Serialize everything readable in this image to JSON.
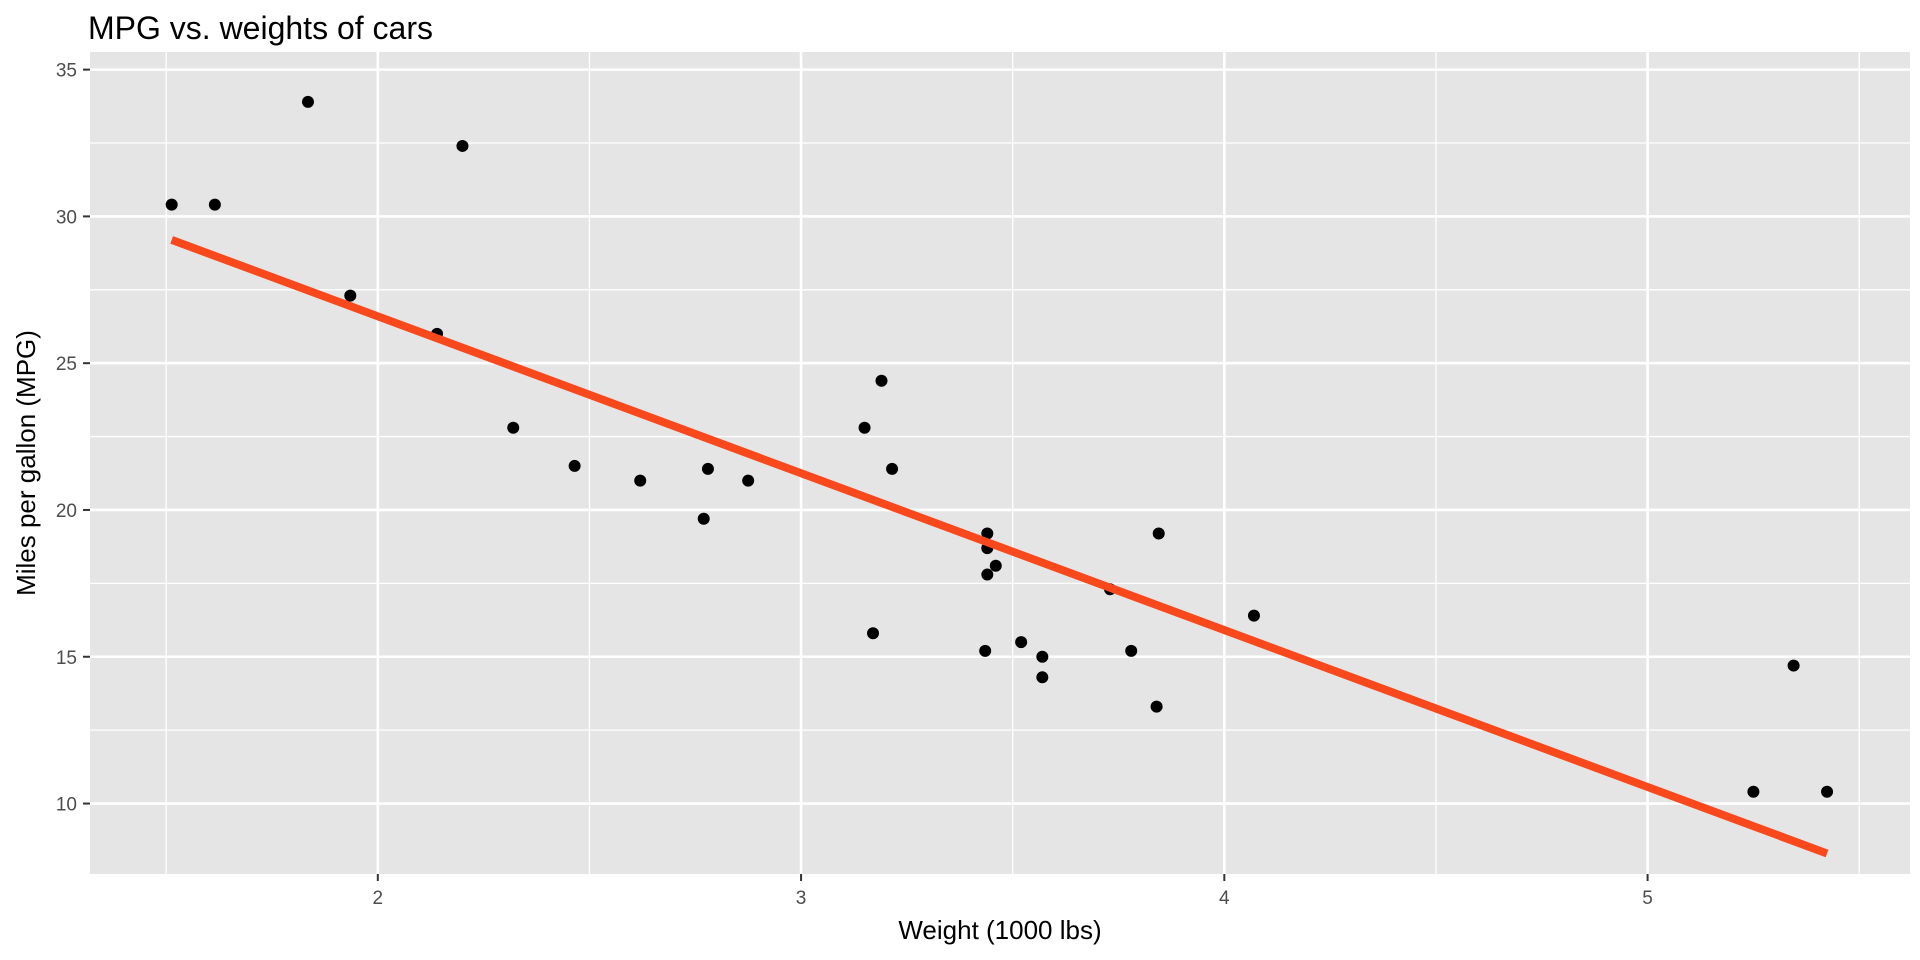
{
  "chart_data": {
    "type": "scatter",
    "title": "MPG vs. weights of cars",
    "xlabel": "Weight (1000 lbs)",
    "ylabel": "Miles per gallon (MPG)",
    "xlim": [
      1.32,
      5.62
    ],
    "ylim": [
      7.6,
      35.6
    ],
    "x_ticks": [
      2,
      3,
      4,
      5
    ],
    "x_tick_labels": [
      "2",
      "3",
      "4",
      "5"
    ],
    "y_ticks": [
      10,
      15,
      20,
      25,
      30,
      35
    ],
    "y_tick_labels": [
      "10",
      "15",
      "20",
      "25",
      "30",
      "35"
    ],
    "grid": true,
    "background_color": "#e5e5e5",
    "grid_color": "#ffffff",
    "point_color": "#000000",
    "series": [
      {
        "points": [
          {
            "x": 2.62,
            "y": 21.0
          },
          {
            "x": 2.875,
            "y": 21.0
          },
          {
            "x": 2.32,
            "y": 22.8
          },
          {
            "x": 3.215,
            "y": 21.4
          },
          {
            "x": 3.44,
            "y": 18.7
          },
          {
            "x": 3.46,
            "y": 18.1
          },
          {
            "x": 3.57,
            "y": 14.3
          },
          {
            "x": 3.19,
            "y": 24.4
          },
          {
            "x": 3.15,
            "y": 22.8
          },
          {
            "x": 3.44,
            "y": 19.2
          },
          {
            "x": 3.44,
            "y": 17.8
          },
          {
            "x": 4.07,
            "y": 16.4
          },
          {
            "x": 3.73,
            "y": 17.3
          },
          {
            "x": 3.78,
            "y": 15.2
          },
          {
            "x": 5.25,
            "y": 10.4
          },
          {
            "x": 5.424,
            "y": 10.4
          },
          {
            "x": 5.345,
            "y": 14.7
          },
          {
            "x": 2.2,
            "y": 32.4
          },
          {
            "x": 1.615,
            "y": 30.4
          },
          {
            "x": 1.835,
            "y": 33.9
          },
          {
            "x": 2.465,
            "y": 21.5
          },
          {
            "x": 3.52,
            "y": 15.5
          },
          {
            "x": 3.435,
            "y": 15.2
          },
          {
            "x": 3.84,
            "y": 13.3
          },
          {
            "x": 3.845,
            "y": 19.2
          },
          {
            "x": 1.935,
            "y": 27.3
          },
          {
            "x": 2.14,
            "y": 26.0
          },
          {
            "x": 1.513,
            "y": 30.4
          },
          {
            "x": 3.17,
            "y": 15.8
          },
          {
            "x": 2.77,
            "y": 19.7
          },
          {
            "x": 3.57,
            "y": 15.0
          },
          {
            "x": 2.78,
            "y": 21.4
          }
        ]
      }
    ],
    "fit_line": {
      "method": "linear regression",
      "color": "#f8481c",
      "intercept": 37.285,
      "slope": -5.344,
      "x_range": [
        1.513,
        5.424
      ]
    }
  }
}
